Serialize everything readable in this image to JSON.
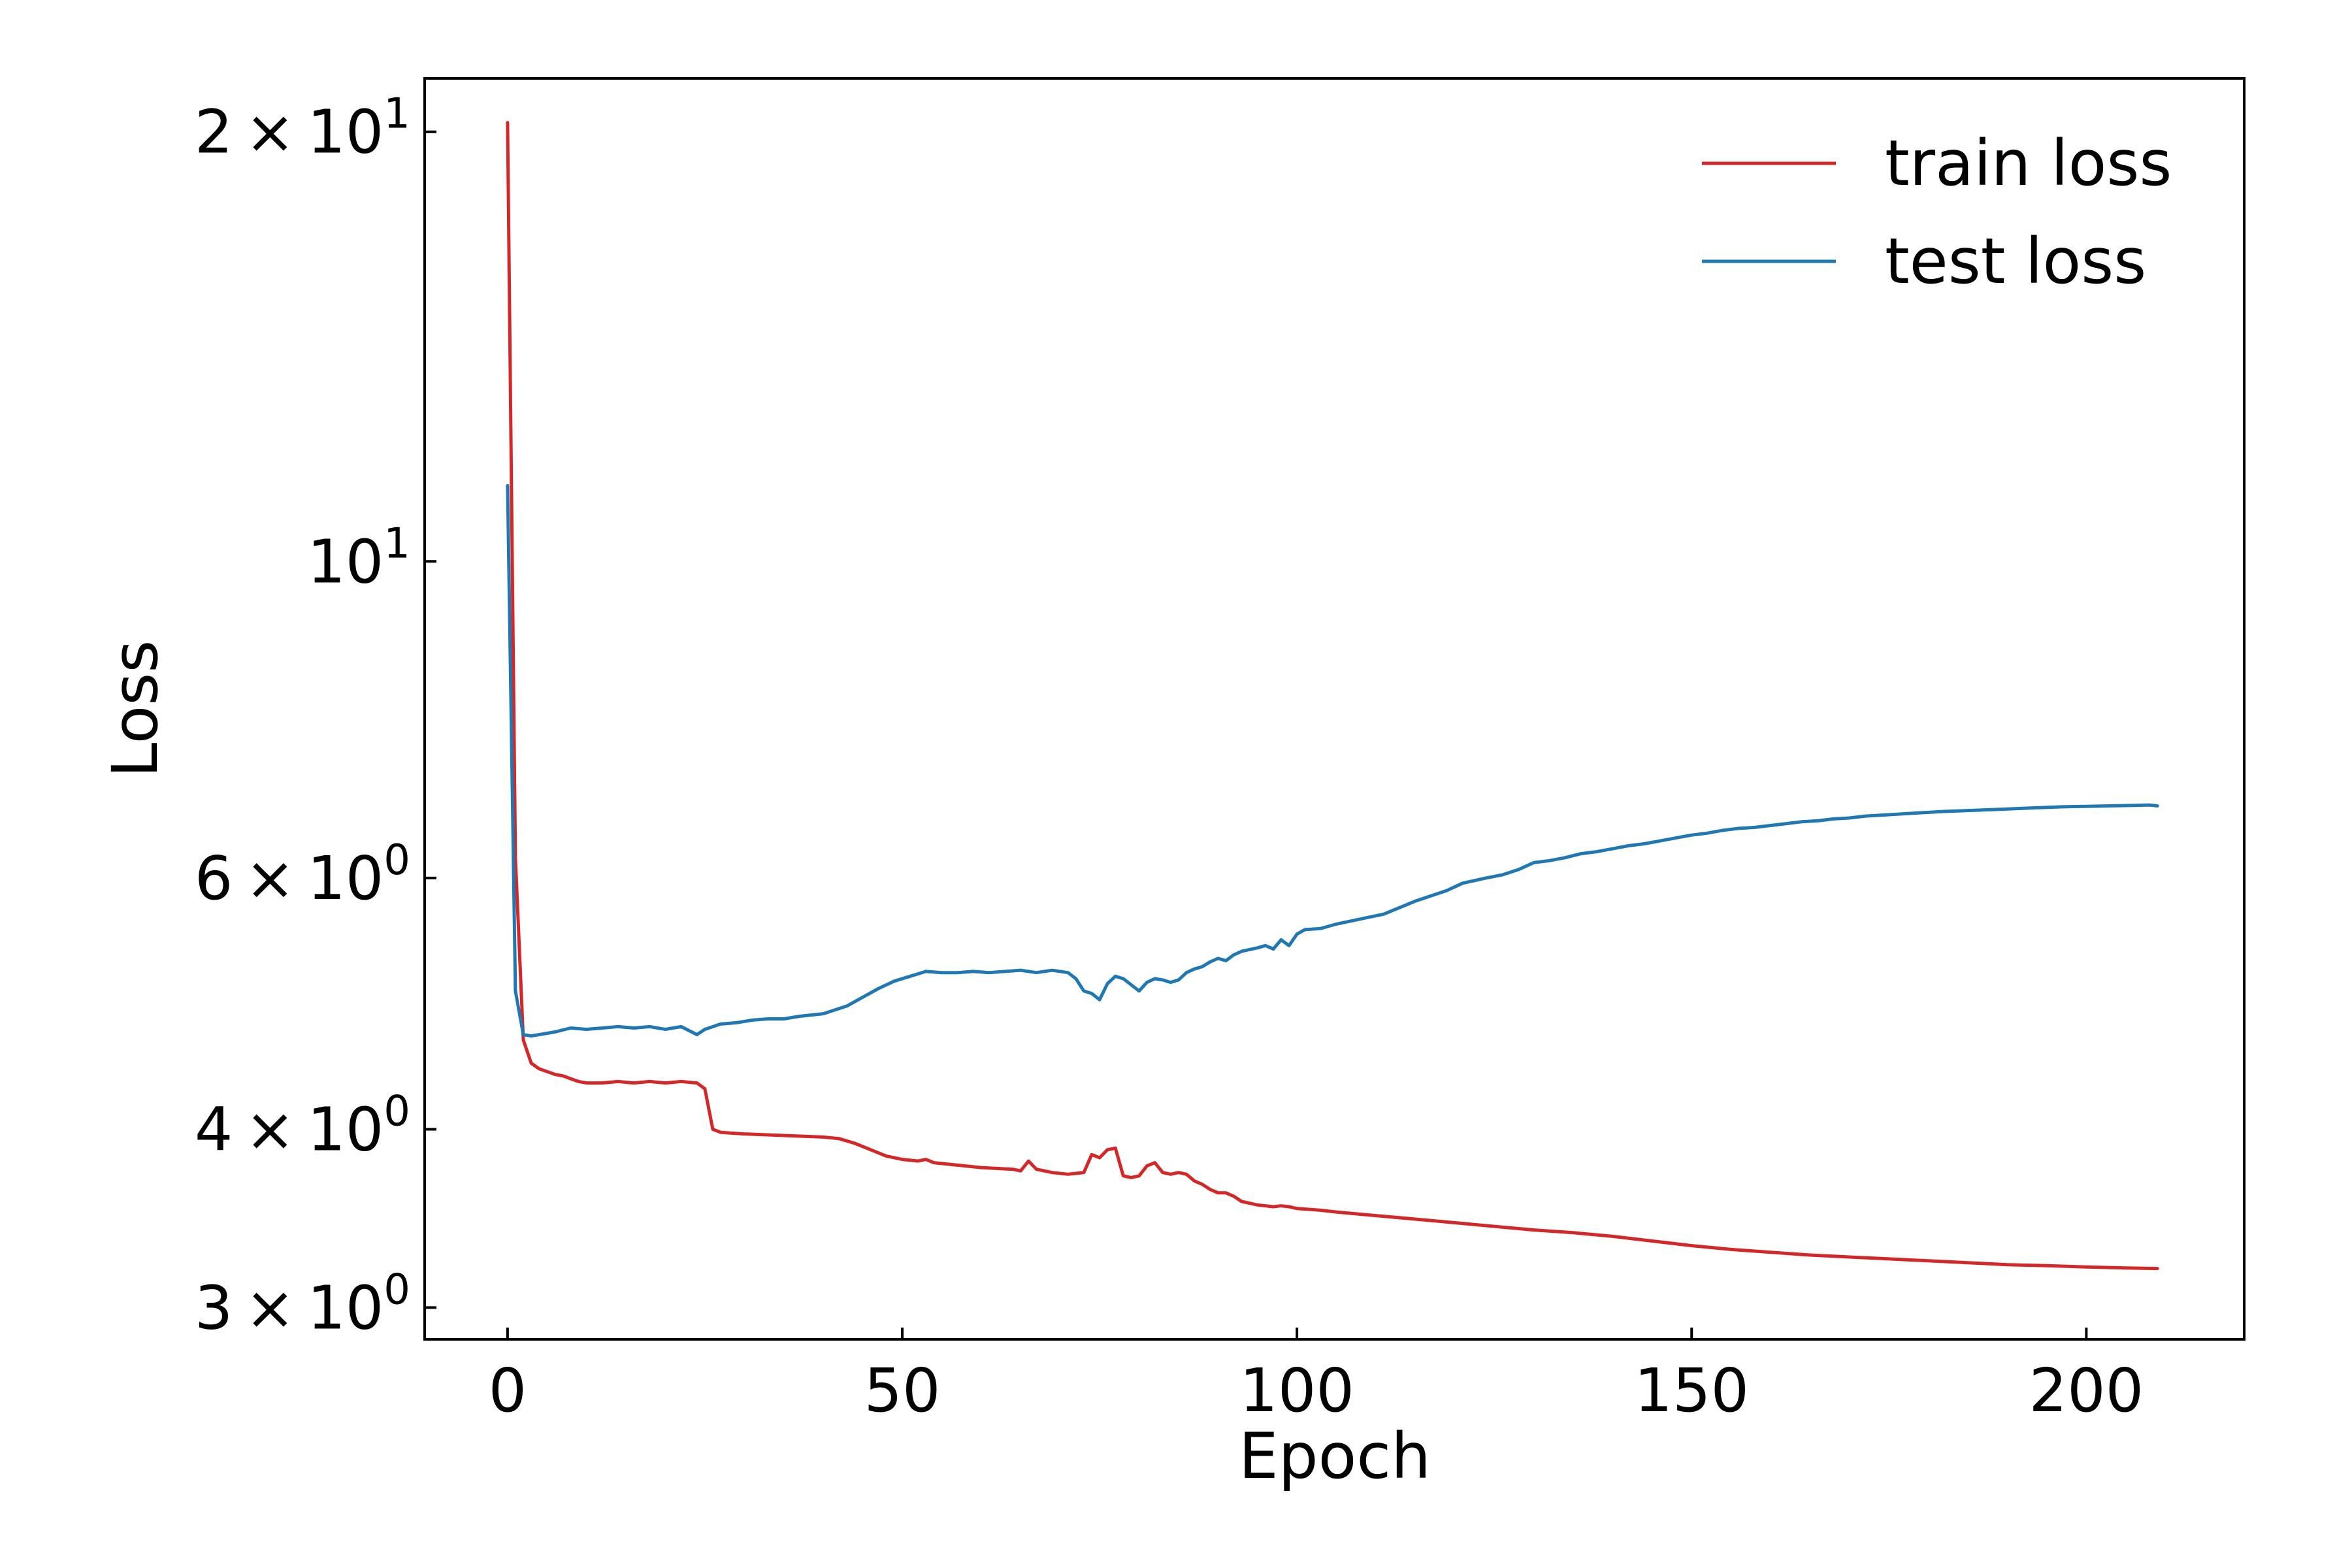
{
  "chart_data": {
    "type": "line",
    "xlabel": "Epoch",
    "ylabel": "Loss",
    "yscale": "log",
    "xlim": [
      -10.5,
      220
    ],
    "ylim": [
      2.85,
      21.8
    ],
    "x_ticks": [
      0,
      50,
      100,
      150,
      200
    ],
    "x_tick_labels": [
      "0",
      "50",
      "100",
      "150",
      "200"
    ],
    "y_ticks": [
      {
        "value": 20,
        "mantissa": "2",
        "times": "×",
        "base": "10",
        "exp": "1"
      },
      {
        "value": 10,
        "mantissa": "",
        "times": "",
        "base": "10",
        "exp": "1"
      },
      {
        "value": 6,
        "mantissa": "6",
        "times": "×",
        "base": "10",
        "exp": "0"
      },
      {
        "value": 4,
        "mantissa": "4",
        "times": "×",
        "base": "10",
        "exp": "0"
      },
      {
        "value": 3,
        "mantissa": "3",
        "times": "×",
        "base": "10",
        "exp": "0"
      }
    ],
    "grid": false,
    "legend_position": "top-right",
    "series": [
      {
        "name": "train loss",
        "color": "#d62728",
        "points": [
          [
            0,
            20.3
          ],
          [
            1,
            6.2
          ],
          [
            2,
            4.62
          ],
          [
            3,
            4.45
          ],
          [
            4,
            4.41
          ],
          [
            5,
            4.39
          ],
          [
            6,
            4.37
          ],
          [
            7,
            4.36
          ],
          [
            8,
            4.34
          ],
          [
            9,
            4.32
          ],
          [
            10,
            4.31
          ],
          [
            12,
            4.31
          ],
          [
            14,
            4.32
          ],
          [
            16,
            4.31
          ],
          [
            18,
            4.32
          ],
          [
            20,
            4.31
          ],
          [
            22,
            4.32
          ],
          [
            24,
            4.31
          ],
          [
            25,
            4.27
          ],
          [
            26,
            4.0
          ],
          [
            27,
            3.98
          ],
          [
            30,
            3.97
          ],
          [
            35,
            3.96
          ],
          [
            40,
            3.95
          ],
          [
            42,
            3.94
          ],
          [
            44,
            3.91
          ],
          [
            46,
            3.87
          ],
          [
            48,
            3.83
          ],
          [
            50,
            3.81
          ],
          [
            52,
            3.8
          ],
          [
            53,
            3.81
          ],
          [
            54,
            3.79
          ],
          [
            56,
            3.78
          ],
          [
            58,
            3.77
          ],
          [
            60,
            3.76
          ],
          [
            62,
            3.755
          ],
          [
            64,
            3.75
          ],
          [
            65,
            3.74
          ],
          [
            66,
            3.8
          ],
          [
            67,
            3.75
          ],
          [
            69,
            3.73
          ],
          [
            71,
            3.72
          ],
          [
            73,
            3.73
          ],
          [
            74,
            3.84
          ],
          [
            75,
            3.82
          ],
          [
            76,
            3.87
          ],
          [
            77,
            3.88
          ],
          [
            78,
            3.71
          ],
          [
            79,
            3.7
          ],
          [
            80,
            3.71
          ],
          [
            81,
            3.77
          ],
          [
            82,
            3.79
          ],
          [
            83,
            3.73
          ],
          [
            84,
            3.72
          ],
          [
            85,
            3.73
          ],
          [
            86,
            3.72
          ],
          [
            87,
            3.68
          ],
          [
            88,
            3.66
          ],
          [
            89,
            3.63
          ],
          [
            90,
            3.61
          ],
          [
            91,
            3.61
          ],
          [
            92,
            3.59
          ],
          [
            93,
            3.56
          ],
          [
            95,
            3.54
          ],
          [
            97,
            3.53
          ],
          [
            98,
            3.535
          ],
          [
            99,
            3.53
          ],
          [
            100,
            3.52
          ],
          [
            103,
            3.51
          ],
          [
            105,
            3.5
          ],
          [
            110,
            3.48
          ],
          [
            115,
            3.46
          ],
          [
            120,
            3.44
          ],
          [
            125,
            3.42
          ],
          [
            130,
            3.4
          ],
          [
            135,
            3.385
          ],
          [
            140,
            3.365
          ],
          [
            145,
            3.34
          ],
          [
            150,
            3.315
          ],
          [
            155,
            3.295
          ],
          [
            160,
            3.28
          ],
          [
            165,
            3.265
          ],
          [
            170,
            3.255
          ],
          [
            175,
            3.245
          ],
          [
            180,
            3.235
          ],
          [
            185,
            3.225
          ],
          [
            190,
            3.215
          ],
          [
            195,
            3.21
          ],
          [
            200,
            3.203
          ],
          [
            205,
            3.198
          ],
          [
            209,
            3.195
          ]
        ]
      },
      {
        "name": "test loss",
        "color": "#1f77b4",
        "points": [
          [
            0,
            11.3
          ],
          [
            1,
            5.0
          ],
          [
            2,
            4.66
          ],
          [
            3,
            4.65
          ],
          [
            4,
            4.66
          ],
          [
            6,
            4.68
          ],
          [
            8,
            4.71
          ],
          [
            10,
            4.7
          ],
          [
            12,
            4.71
          ],
          [
            14,
            4.72
          ],
          [
            16,
            4.71
          ],
          [
            18,
            4.72
          ],
          [
            20,
            4.7
          ],
          [
            22,
            4.72
          ],
          [
            24,
            4.66
          ],
          [
            25,
            4.7
          ],
          [
            27,
            4.74
          ],
          [
            29,
            4.75
          ],
          [
            31,
            4.77
          ],
          [
            33,
            4.78
          ],
          [
            35,
            4.78
          ],
          [
            37,
            4.8
          ],
          [
            40,
            4.82
          ],
          [
            43,
            4.88
          ],
          [
            45,
            4.95
          ],
          [
            47,
            5.02
          ],
          [
            49,
            5.08
          ],
          [
            51,
            5.12
          ],
          [
            53,
            5.16
          ],
          [
            55,
            5.15
          ],
          [
            57,
            5.15
          ],
          [
            59,
            5.16
          ],
          [
            61,
            5.15
          ],
          [
            63,
            5.16
          ],
          [
            65,
            5.17
          ],
          [
            67,
            5.15
          ],
          [
            69,
            5.17
          ],
          [
            71,
            5.15
          ],
          [
            72,
            5.1
          ],
          [
            73,
            5.0
          ],
          [
            74,
            4.98
          ],
          [
            75,
            4.93
          ],
          [
            76,
            5.06
          ],
          [
            77,
            5.12
          ],
          [
            78,
            5.1
          ],
          [
            79,
            5.05
          ],
          [
            80,
            5.0
          ],
          [
            81,
            5.07
          ],
          [
            82,
            5.1
          ],
          [
            83,
            5.09
          ],
          [
            84,
            5.07
          ],
          [
            85,
            5.09
          ],
          [
            86,
            5.15
          ],
          [
            87,
            5.18
          ],
          [
            88,
            5.2
          ],
          [
            89,
            5.24
          ],
          [
            90,
            5.27
          ],
          [
            91,
            5.25
          ],
          [
            92,
            5.3
          ],
          [
            93,
            5.33
          ],
          [
            95,
            5.36
          ],
          [
            96,
            5.38
          ],
          [
            97,
            5.35
          ],
          [
            98,
            5.43
          ],
          [
            99,
            5.38
          ],
          [
            100,
            5.48
          ],
          [
            101,
            5.52
          ],
          [
            103,
            5.53
          ],
          [
            105,
            5.57
          ],
          [
            107,
            5.6
          ],
          [
            109,
            5.63
          ],
          [
            111,
            5.66
          ],
          [
            113,
            5.72
          ],
          [
            115,
            5.78
          ],
          [
            117,
            5.83
          ],
          [
            119,
            5.88
          ],
          [
            121,
            5.95
          ],
          [
            124,
            6.0
          ],
          [
            126,
            6.03
          ],
          [
            128,
            6.08
          ],
          [
            130,
            6.15
          ],
          [
            132,
            6.17
          ],
          [
            134,
            6.2
          ],
          [
            136,
            6.24
          ],
          [
            138,
            6.26
          ],
          [
            140,
            6.29
          ],
          [
            142,
            6.32
          ],
          [
            144,
            6.34
          ],
          [
            146,
            6.37
          ],
          [
            148,
            6.4
          ],
          [
            150,
            6.43
          ],
          [
            152,
            6.45
          ],
          [
            154,
            6.48
          ],
          [
            156,
            6.5
          ],
          [
            158,
            6.51
          ],
          [
            160,
            6.53
          ],
          [
            162,
            6.55
          ],
          [
            164,
            6.57
          ],
          [
            166,
            6.58
          ],
          [
            168,
            6.6
          ],
          [
            170,
            6.61
          ],
          [
            172,
            6.63
          ],
          [
            174,
            6.64
          ],
          [
            176,
            6.65
          ],
          [
            178,
            6.66
          ],
          [
            180,
            6.67
          ],
          [
            182,
            6.68
          ],
          [
            185,
            6.69
          ],
          [
            188,
            6.7
          ],
          [
            191,
            6.71
          ],
          [
            194,
            6.72
          ],
          [
            197,
            6.73
          ],
          [
            200,
            6.735
          ],
          [
            203,
            6.74
          ],
          [
            206,
            6.745
          ],
          [
            208,
            6.75
          ],
          [
            209,
            6.74
          ]
        ]
      }
    ]
  }
}
